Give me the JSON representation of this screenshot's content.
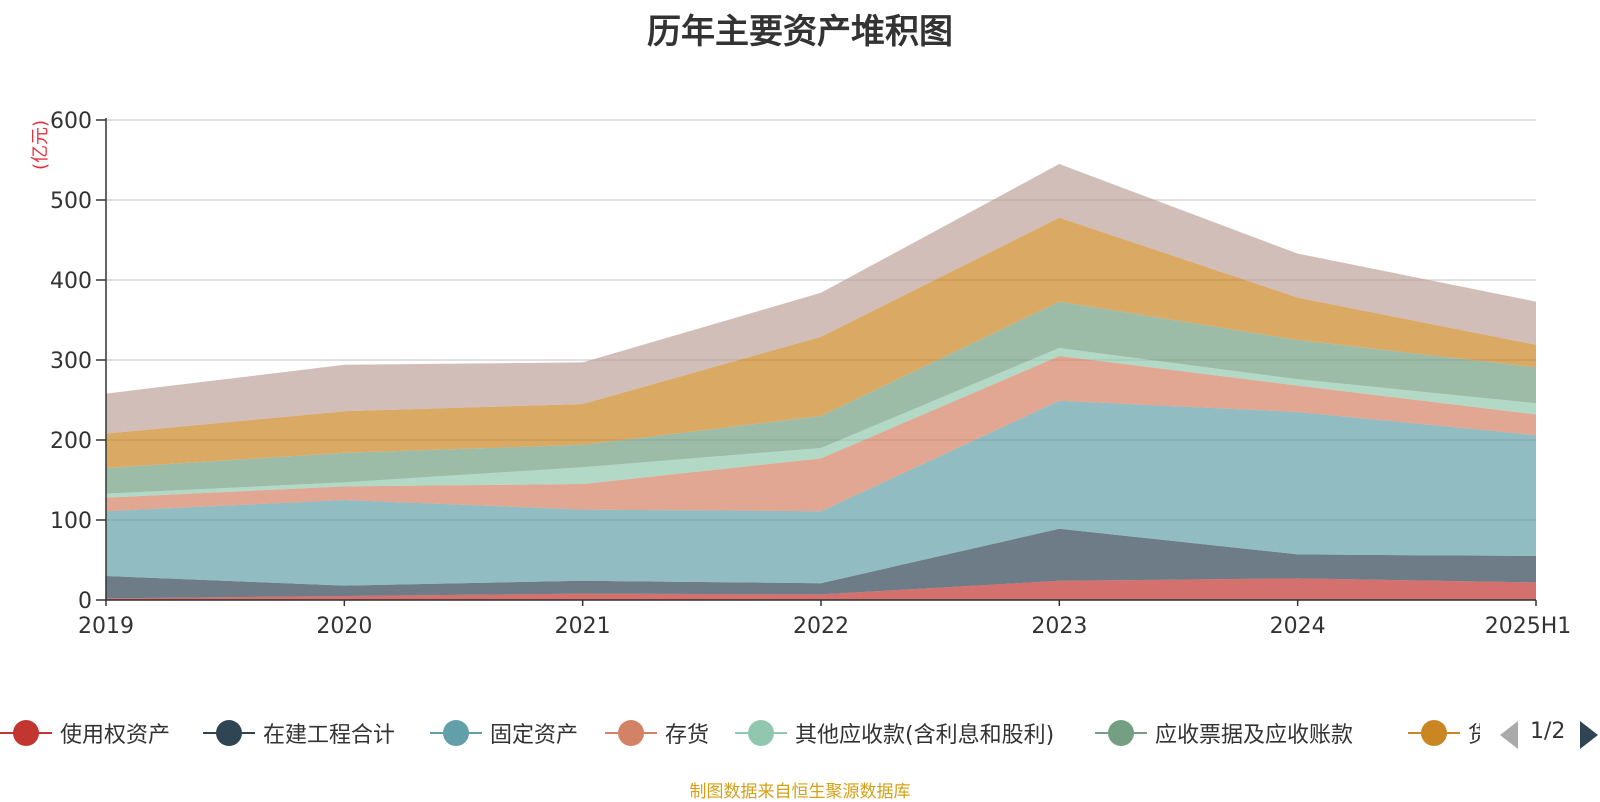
{
  "chart_data": {
    "type": "area",
    "title": "历年主要资产堆积图",
    "ylabel": "(亿元)",
    "categories": [
      "2019",
      "2020",
      "2021",
      "2022",
      "2023",
      "2024",
      "2025H1"
    ],
    "ylim": [
      0,
      600
    ],
    "yticks": [
      0,
      100,
      200,
      300,
      400,
      500,
      600
    ],
    "stacked": true,
    "grid": true,
    "legend_position": "bottom",
    "series": [
      {
        "name": "使用权资产",
        "color": "#c23531",
        "values": [
          2,
          5,
          8,
          7,
          24,
          27,
          22
        ]
      },
      {
        "name": "在建工程合计",
        "color": "#2f4554",
        "values": [
          28,
          13,
          16,
          14,
          65,
          30,
          33
        ]
      },
      {
        "name": "固定资产",
        "color": "#61a0a8",
        "values": [
          81,
          107,
          89,
          90,
          160,
          178,
          151
        ]
      },
      {
        "name": "存货",
        "color": "#d48265",
        "values": [
          17,
          17,
          32,
          66,
          56,
          33,
          26
        ]
      },
      {
        "name": "其他应收款(含利息和股利)",
        "color": "#91c7ae",
        "values": [
          5,
          5,
          21,
          13,
          10,
          8,
          14
        ]
      },
      {
        "name": "应收票据及应收账款",
        "color": "#749f83",
        "values": [
          32,
          37,
          28,
          40,
          58,
          49,
          45
        ]
      },
      {
        "name": "货币资金",
        "color": "#ca8622",
        "values": [
          43,
          52,
          51,
          99,
          105,
          53,
          28
        ]
      },
      {
        "name": "",
        "color": "#bda29a",
        "values": [
          50,
          58,
          52,
          55,
          67,
          55,
          54
        ]
      }
    ]
  },
  "legend": {
    "items": [
      "使用权资产",
      "在建工程合计",
      "固定资产",
      "存货",
      "其他应收款(含利息和股利)",
      "应收票据及应收账款",
      "货币资金"
    ],
    "page": "1/2"
  },
  "source_note": "制图数据来自恒生聚源数据库"
}
